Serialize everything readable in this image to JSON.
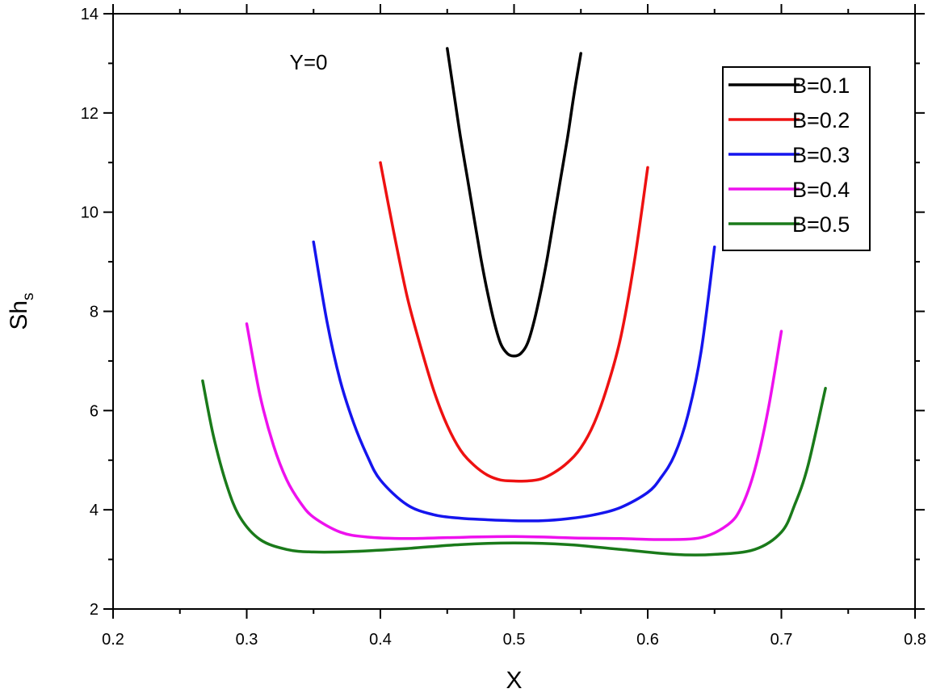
{
  "chart_data": {
    "type": "line",
    "title": "",
    "annotation": "Y=0",
    "xlabel": "X",
    "ylabel_main": "Sh",
    "ylabel_sub": "s",
    "xlim": [
      0.2,
      0.8
    ],
    "ylim": [
      2,
      14
    ],
    "xticks": [
      "0.2",
      "0.3",
      "0.4",
      "0.5",
      "0.6",
      "0.7",
      "0.8"
    ],
    "yticks": [
      "2",
      "4",
      "6",
      "8",
      "10",
      "12",
      "14"
    ],
    "grid": false,
    "legend_position": "top-right",
    "series": [
      {
        "name": "B=0.1",
        "color": "#000000",
        "x": [
          0.45,
          0.455,
          0.46,
          0.465,
          0.47,
          0.475,
          0.48,
          0.485,
          0.49,
          0.495,
          0.5,
          0.505,
          0.51,
          0.515,
          0.52,
          0.525,
          0.53,
          0.535,
          0.54,
          0.545,
          0.55
        ],
        "y": [
          13.3,
          12.4,
          11.5,
          10.7,
          9.9,
          9.1,
          8.4,
          7.8,
          7.35,
          7.15,
          7.1,
          7.15,
          7.35,
          7.8,
          8.4,
          9.1,
          9.9,
          10.7,
          11.5,
          12.4,
          13.2
        ]
      },
      {
        "name": "B=0.2",
        "color": "#ee1111",
        "x": [
          0.4,
          0.41,
          0.42,
          0.43,
          0.44,
          0.45,
          0.46,
          0.47,
          0.48,
          0.49,
          0.5,
          0.51,
          0.52,
          0.53,
          0.54,
          0.55,
          0.56,
          0.57,
          0.58,
          0.59,
          0.6
        ],
        "y": [
          11.0,
          9.6,
          8.3,
          7.3,
          6.4,
          5.7,
          5.2,
          4.9,
          4.7,
          4.6,
          4.58,
          4.58,
          4.62,
          4.75,
          4.95,
          5.25,
          5.75,
          6.5,
          7.5,
          9.0,
          10.9
        ]
      },
      {
        "name": "B=0.3",
        "color": "#1515ee",
        "x": [
          0.35,
          0.36,
          0.37,
          0.38,
          0.39,
          0.4,
          0.42,
          0.44,
          0.46,
          0.48,
          0.5,
          0.52,
          0.54,
          0.56,
          0.58,
          0.6,
          0.61,
          0.62,
          0.63,
          0.64,
          0.65
        ],
        "y": [
          9.4,
          7.8,
          6.6,
          5.75,
          5.1,
          4.6,
          4.1,
          3.9,
          3.83,
          3.8,
          3.78,
          3.78,
          3.82,
          3.9,
          4.05,
          4.35,
          4.65,
          5.1,
          5.9,
          7.2,
          9.3
        ]
      },
      {
        "name": "B=0.4",
        "color": "#ee11ee",
        "x": [
          0.3,
          0.31,
          0.32,
          0.33,
          0.34,
          0.35,
          0.37,
          0.39,
          0.42,
          0.45,
          0.5,
          0.55,
          0.58,
          0.61,
          0.64,
          0.66,
          0.67,
          0.68,
          0.69,
          0.7
        ],
        "y": [
          7.75,
          6.3,
          5.3,
          4.6,
          4.15,
          3.85,
          3.55,
          3.45,
          3.42,
          3.44,
          3.46,
          3.43,
          3.42,
          3.4,
          3.44,
          3.7,
          4.05,
          4.8,
          6.0,
          7.6
        ]
      },
      {
        "name": "B=0.5",
        "color": "#1a7a1a",
        "x": [
          0.267,
          0.275,
          0.285,
          0.295,
          0.31,
          0.33,
          0.35,
          0.38,
          0.42,
          0.46,
          0.5,
          0.54,
          0.58,
          0.62,
          0.65,
          0.68,
          0.7,
          0.71,
          0.72,
          0.733
        ],
        "y": [
          6.6,
          5.5,
          4.5,
          3.85,
          3.4,
          3.2,
          3.15,
          3.16,
          3.22,
          3.3,
          3.33,
          3.3,
          3.2,
          3.1,
          3.1,
          3.2,
          3.55,
          4.1,
          4.9,
          6.45
        ]
      }
    ]
  }
}
